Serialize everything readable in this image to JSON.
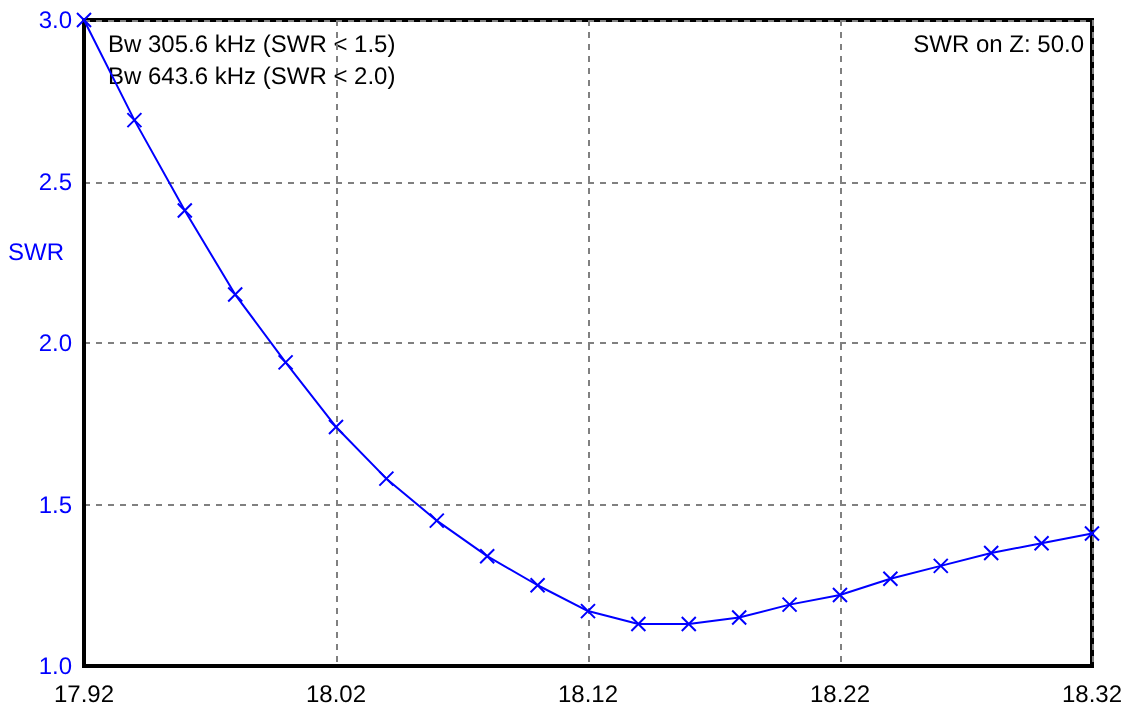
{
  "chart_data": {
    "type": "line",
    "ylabel": "SWR",
    "annotations": [
      "Bw 305.6 kHz (SWR < 1.5)",
      "Bw 643.6 kHz (SWR < 2.0)",
      "SWR on Z: 50.0"
    ],
    "x": [
      17.92,
      17.94,
      17.96,
      17.98,
      18.0,
      18.02,
      18.04,
      18.06,
      18.08,
      18.1,
      18.12,
      18.14,
      18.16,
      18.18,
      18.2,
      18.22,
      18.24,
      18.26,
      18.28,
      18.3,
      18.32
    ],
    "series": [
      {
        "color": "#0000ff",
        "values": [
          3.0,
          2.69,
          2.41,
          2.15,
          1.94,
          1.74,
          1.58,
          1.45,
          1.34,
          1.25,
          1.17,
          1.13,
          1.13,
          1.15,
          1.19,
          1.22,
          1.27,
          1.31,
          1.35,
          1.38,
          1.41
        ]
      }
    ],
    "xlim": [
      17.92,
      18.32
    ],
    "xticks": [
      17.92,
      18.02,
      18.12,
      18.22,
      18.32
    ],
    "ylim": [
      1.0,
      3.0
    ],
    "yticks": [
      {
        "value": 1,
        "label": "1.0"
      },
      {
        "value": 1.5,
        "label": "1.5"
      },
      {
        "value": 2,
        "label": "2.0"
      },
      {
        "value": 2.5,
        "label": "2.5"
      },
      {
        "value": 3,
        "label": "3.0"
      }
    ],
    "grid": true,
    "marker": "cross",
    "line_style": "solid"
  }
}
